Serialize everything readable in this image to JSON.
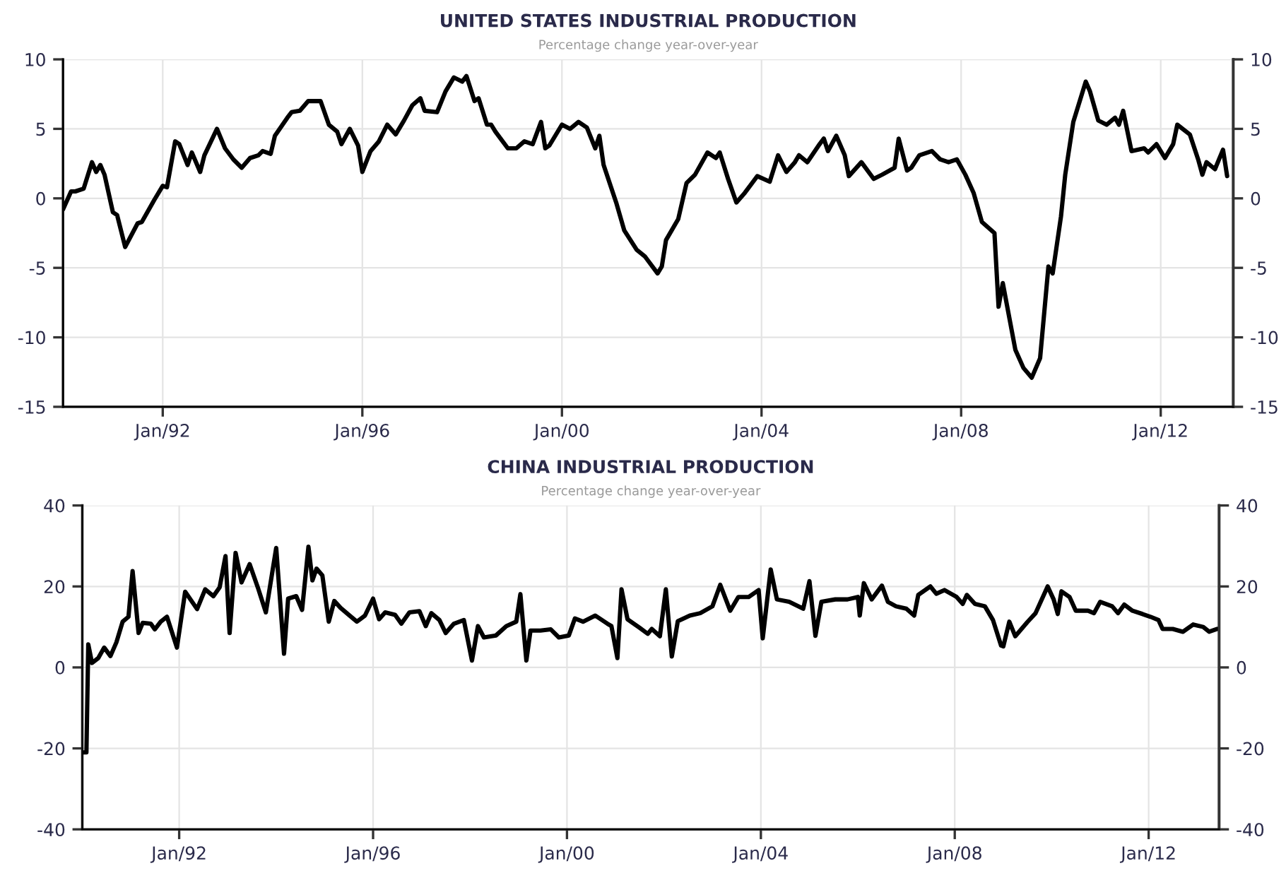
{
  "chart_data": [
    {
      "type": "line",
      "title": "UNITED STATES INDUSTRIAL PRODUCTION",
      "subtitle": "Percentage change year-over-year",
      "xlim": [
        "1990-01-01",
        "2013-06-15"
      ],
      "xticks": [
        {
          "value": "1992-01-01",
          "label": "Jan/92"
        },
        {
          "value": "1996-01-01",
          "label": "Jan/96"
        },
        {
          "value": "2000-01-01",
          "label": "Jan/00"
        },
        {
          "value": "2004-01-01",
          "label": "Jan/04"
        },
        {
          "value": "2008-01-01",
          "label": "Jan/08"
        },
        {
          "value": "2012-01-01",
          "label": "Jan/12"
        }
      ],
      "ylim": [
        -15,
        10
      ],
      "yticks": [
        -15,
        -10,
        -5,
        0,
        5,
        10
      ],
      "y2lim": [
        -15,
        10
      ],
      "y2ticks": [
        -15,
        -10,
        -5,
        0,
        5,
        10
      ],
      "grid": true,
      "series": [
        {
          "color": "#000000",
          "x": [
            "1990-01",
            "1990-03",
            "1990-04",
            "1990-06",
            "1990-08",
            "1990-09",
            "1990-10",
            "1990-11",
            "1991-01",
            "1991-02",
            "1991-04",
            "1991-07",
            "1991-08",
            "1991-11",
            "1992-01",
            "1992-02",
            "1992-04",
            "1992-05",
            "1992-07",
            "1992-08",
            "1992-10",
            "1992-11",
            "1993-02",
            "1993-04",
            "1993-06",
            "1993-08",
            "1993-10",
            "1993-12",
            "1994-01",
            "1994-03",
            "1994-04",
            "1994-07",
            "1994-08",
            "1994-10",
            "1994-12",
            "1995-03",
            "1995-05",
            "1995-07",
            "1995-08",
            "1995-10",
            "1995-12",
            "1996-01",
            "1996-03",
            "1996-05",
            "1996-07",
            "1996-09",
            "1996-11",
            "1997-01",
            "1997-03",
            "1997-04",
            "1997-07",
            "1997-09",
            "1997-11",
            "1998-01",
            "1998-02",
            "1998-04",
            "1998-05",
            "1998-07",
            "1998-08",
            "1998-09",
            "1998-12",
            "1999-02",
            "1999-04",
            "1999-06",
            "1999-08",
            "1999-09",
            "1999-10",
            "2000-01",
            "2000-03",
            "2000-05",
            "2000-07",
            "2000-09",
            "2000-10",
            "2000-11",
            "2001-02",
            "2001-04",
            "2001-07",
            "2001-09",
            "2001-12",
            "2002-01",
            "2002-02",
            "2002-05",
            "2002-07",
            "2002-09",
            "2002-12",
            "2003-02",
            "2003-03",
            "2003-05",
            "2003-07",
            "2003-09",
            "2003-12",
            "2004-03",
            "2004-05",
            "2004-07",
            "2004-09",
            "2004-10",
            "2004-12",
            "2005-03",
            "2005-04",
            "2005-05",
            "2005-07",
            "2005-09",
            "2005-10",
            "2006-01",
            "2006-04",
            "2006-06",
            "2006-09",
            "2006-10",
            "2006-12",
            "2007-01",
            "2007-03",
            "2007-06",
            "2007-08",
            "2007-10",
            "2007-12",
            "2008-02",
            "2008-04",
            "2008-06",
            "2008-09",
            "2008-10",
            "2008-11",
            "2009-02",
            "2009-04",
            "2009-06",
            "2009-08",
            "2009-10",
            "2009-11",
            "2010-01",
            "2010-02",
            "2010-04",
            "2010-07",
            "2010-08",
            "2010-10",
            "2010-12",
            "2011-02",
            "2011-03",
            "2011-04",
            "2011-06",
            "2011-09",
            "2011-10",
            "2011-12",
            "2012-02",
            "2012-04",
            "2012-05",
            "2012-08",
            "2012-10",
            "2012-11",
            "2012-12",
            "2013-02",
            "2013-04",
            "2013-05"
          ],
          "values": [
            -0.8,
            0.5,
            0.5,
            0.7,
            2.6,
            1.9,
            2.4,
            1.7,
            -1.0,
            -1.2,
            -3.5,
            -1.8,
            -1.7,
            -0.1,
            0.9,
            0.8,
            4.1,
            3.9,
            2.4,
            3.3,
            1.9,
            3.1,
            5.0,
            3.6,
            2.8,
            2.2,
            2.9,
            3.1,
            3.4,
            3.2,
            4.5,
            5.8,
            6.2,
            6.3,
            7.0,
            7.0,
            5.3,
            4.8,
            3.9,
            5.0,
            3.8,
            1.9,
            3.4,
            4.1,
            5.3,
            4.6,
            5.6,
            6.7,
            7.2,
            6.3,
            6.2,
            7.7,
            8.7,
            8.4,
            8.8,
            7.0,
            7.2,
            5.3,
            5.3,
            4.8,
            3.6,
            3.6,
            4.1,
            3.9,
            5.5,
            3.6,
            3.8,
            5.3,
            5.0,
            5.5,
            5.1,
            3.6,
            4.5,
            2.4,
            -0.3,
            -2.3,
            -3.7,
            -4.2,
            -5.4,
            -4.9,
            -3.0,
            -1.5,
            1.1,
            1.7,
            3.3,
            2.9,
            3.3,
            1.4,
            -0.3,
            0.4,
            1.6,
            1.2,
            3.1,
            1.9,
            2.6,
            3.1,
            2.6,
            3.9,
            4.3,
            3.4,
            4.5,
            3.1,
            1.6,
            2.6,
            1.4,
            1.7,
            2.2,
            4.3,
            2.0,
            2.2,
            3.1,
            3.4,
            2.8,
            2.6,
            2.8,
            1.7,
            0.4,
            -1.7,
            -2.5,
            -7.8,
            -6.1,
            -10.9,
            -12.2,
            -12.9,
            -11.5,
            -4.9,
            -5.4,
            -1.3,
            1.7,
            5.5,
            8.4,
            7.7,
            5.6,
            5.3,
            5.8,
            5.3,
            6.3,
            3.4,
            3.6,
            3.3,
            3.9,
            2.9,
            3.9,
            5.3,
            4.6,
            2.8,
            1.7,
            2.6,
            2.1,
            3.5,
            1.6
          ]
        }
      ]
    },
    {
      "type": "line",
      "title": "CHINA INDUSTRIAL PRODUCTION",
      "subtitle": "Percentage change year-over-year",
      "xlim": [
        "1990-01-01",
        "2013-06-15"
      ],
      "xticks": [
        {
          "value": "1992-01-01",
          "label": "Jan/92"
        },
        {
          "value": "1996-01-01",
          "label": "Jan/96"
        },
        {
          "value": "2000-01-01",
          "label": "Jan/00"
        },
        {
          "value": "2004-01-01",
          "label": "Jan/04"
        },
        {
          "value": "2008-01-01",
          "label": "Jan/08"
        },
        {
          "value": "2012-01-01",
          "label": "Jan/12"
        }
      ],
      "ylim": [
        -40,
        40
      ],
      "yticks": [
        -40,
        -20,
        0,
        20,
        40
      ],
      "y2lim": [
        -40,
        40
      ],
      "y2ticks": [
        -40,
        -20,
        0,
        20,
        40
      ],
      "grid": true,
      "series": [
        {
          "color": "#000000",
          "x": [
            "1990-01-01",
            "1990-02-01",
            "1990-02-15",
            "1990-03-15",
            "1990-05-01",
            "1990-06-15",
            "1990-08-01",
            "1990-09-15",
            "1990-11-01",
            "1990-12-15",
            "1991-01-15",
            "1991-03-01",
            "1991-04-01",
            "1991-06-01",
            "1991-07-01",
            "1991-08-15",
            "1991-10-01",
            "1991-12-15",
            "1992-02-15",
            "1992-05-15",
            "1992-07-15",
            "1992-09-15",
            "1992-11-01",
            "1992-12-15",
            "1993-01-15",
            "1993-03-01",
            "1993-04-15",
            "1993-06-15",
            "1993-08-15",
            "1993-10-15",
            "1994-01-01",
            "1994-03-01",
            "1994-04-01",
            "1994-06-01",
            "1994-07-15",
            "1994-09-01",
            "1994-10-01",
            "1994-11-01",
            "1994-12-15",
            "1995-02-01",
            "1995-03-15",
            "1995-05-01",
            "1995-07-01",
            "1995-09-01",
            "1995-11-01",
            "1996-01-01",
            "1996-02-15",
            "1996-04-01",
            "1996-06-15",
            "1996-08-01",
            "1996-10-01",
            "1996-12-15",
            "1997-02-01",
            "1997-03-15",
            "1997-05-15",
            "1997-07-01",
            "1997-09-01",
            "1997-11-15",
            "1998-01-15",
            "1998-03-01",
            "1998-04-15",
            "1998-07-15",
            "1998-10-01",
            "1998-12-15",
            "1999-01-15",
            "1999-03-01",
            "1999-04-01",
            "1999-06-15",
            "1999-09-01",
            "1999-11-01",
            "2000-01-15",
            "2000-03-01",
            "2000-05-01",
            "2000-08-01",
            "2000-11-01",
            "2000-12-01",
            "2001-01-15",
            "2001-02-15",
            "2001-04-01",
            "2001-05-01",
            "2001-07-01",
            "2001-09-01",
            "2001-10-01",
            "2001-12-01",
            "2002-01-15",
            "2002-03-01",
            "2002-04-15",
            "2002-07-15",
            "2002-10-01",
            "2003-01-01",
            "2003-03-01",
            "2003-05-15",
            "2003-07-15",
            "2003-10-01",
            "2003-12-15",
            "2004-01-15",
            "2004-03-15",
            "2004-05-01",
            "2004-08-01",
            "2004-11-15",
            "2005-01-01",
            "2005-02-15",
            "2005-04-01",
            "2005-07-15",
            "2005-10-15",
            "2006-01-01",
            "2006-01-15",
            "2006-02-15",
            "2006-04-15",
            "2006-07-01",
            "2006-08-15",
            "2006-10-15",
            "2007-01-01",
            "2007-03-01",
            "2007-04-01",
            "2007-07-01",
            "2007-08-15",
            "2007-10-15",
            "2008-01-15",
            "2008-03-01",
            "2008-04-01",
            "2008-06-01",
            "2008-08-15",
            "2008-10-15",
            "2008-12-15",
            "2009-01-01",
            "2009-02-15",
            "2009-04-01",
            "2009-07-01",
            "2009-09-01",
            "2009-12-01",
            "2010-01-15",
            "2010-02-15",
            "2010-03-15",
            "2010-05-15",
            "2010-07-01",
            "2010-10-01",
            "2010-11-15",
            "2011-01-01",
            "2011-04-01",
            "2011-05-15",
            "2011-07-01",
            "2011-09-01",
            "2011-11-15",
            "2012-01-15",
            "2012-03-15",
            "2012-04-15",
            "2012-07-01",
            "2012-09-15",
            "2012-12-01",
            "2013-02-15",
            "2013-04-01",
            "2013-06-01"
          ],
          "values": [
            -21,
            -21,
            5.7,
            1.1,
            2.3,
            4.9,
            2.8,
            6.2,
            11.3,
            12.5,
            23.8,
            8.5,
            11.0,
            10.8,
            9.4,
            11.3,
            12.5,
            4.9,
            18.7,
            14.4,
            19.3,
            17.6,
            19.8,
            27.5,
            8.5,
            28.3,
            21.0,
            25.5,
            19.8,
            13.6,
            29.5,
            3.4,
            17.0,
            17.6,
            14.2,
            29.8,
            21.5,
            24.4,
            22.7,
            11.3,
            16.4,
            14.7,
            13.0,
            11.3,
            12.8,
            17.0,
            11.9,
            13.6,
            13.0,
            10.8,
            13.6,
            13.9,
            10.2,
            13.4,
            11.7,
            8.5,
            10.8,
            11.7,
            1.7,
            10.2,
            7.4,
            7.9,
            10.2,
            11.3,
            18.1,
            1.7,
            9.1,
            9.1,
            9.4,
            7.4,
            7.9,
            12.1,
            11.3,
            12.8,
            10.8,
            10.2,
            2.3,
            19.3,
            11.9,
            11.2,
            9.8,
            8.3,
            9.5,
            7.7,
            19.3,
            2.7,
            11.4,
            12.8,
            13.4,
            15.1,
            20.4,
            14.0,
            17.4,
            17.4,
            19.1,
            7.2,
            24.2,
            16.8,
            16.2,
            14.5,
            21.3,
            7.8,
            16.2,
            16.8,
            16.8,
            17.4,
            12.8,
            20.8,
            16.8,
            20.2,
            16.2,
            15.1,
            14.5,
            12.8,
            17.9,
            20.0,
            18.2,
            19.1,
            17.4,
            15.7,
            17.9,
            15.7,
            15.1,
            11.7,
            5.4,
            5.2,
            11.3,
            7.7,
            11.2,
            13.4,
            20.0,
            16.8,
            13.2,
            18.8,
            17.4,
            14.0,
            14.0,
            13.4,
            16.2,
            15.1,
            13.4,
            15.5,
            14.0,
            13.2,
            12.5,
            11.7,
            9.5,
            9.5,
            8.8,
            10.6,
            10.0,
            8.8,
            9.5
          ]
        }
      ]
    }
  ]
}
